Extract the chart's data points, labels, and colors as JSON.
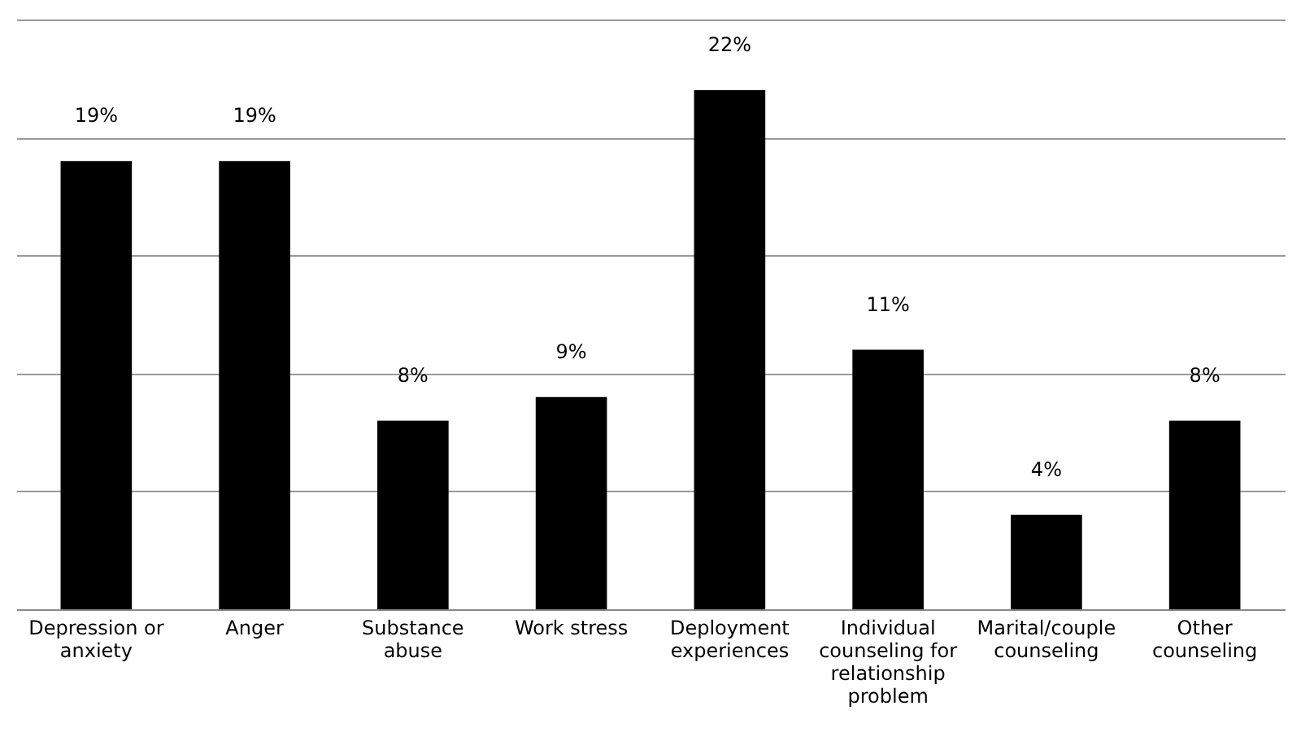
{
  "chart_data": {
    "type": "bar",
    "categories": [
      "Depression or anxiety",
      "Anger",
      "Substance abuse",
      "Work stress",
      "Deployment experiences",
      "Individual counseling for relationship problem",
      "Marital/couple counseling",
      "Other counseling"
    ],
    "values": [
      19,
      19,
      8,
      9,
      22,
      11,
      4,
      8
    ],
    "color": "#000000",
    "ylim": [
      0,
      25
    ],
    "yticks": [
      {
        "value": 0,
        "label": null
      },
      {
        "value": 5,
        "label": null
      },
      {
        "value": 10,
        "label": null
      },
      {
        "value": 15,
        "label": null
      },
      {
        "value": 20,
        "label": null
      },
      {
        "value": 25,
        "label": null
      }
    ],
    "value_labels": [
      "19%",
      "19%",
      "8%",
      "9%",
      "22%",
      "11%",
      "4%",
      "8%"
    ],
    "grid": "y",
    "tick_labels": "x"
  }
}
